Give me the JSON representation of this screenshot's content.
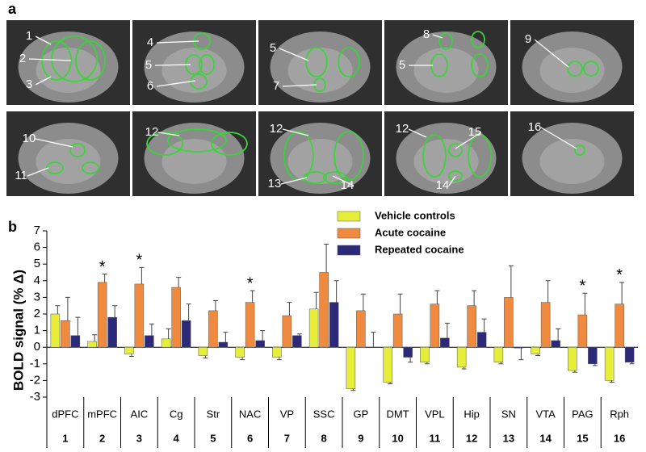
{
  "panel_labels": [
    "a",
    "b"
  ],
  "images": [
    {
      "labels": [
        "1",
        "2",
        "3"
      ]
    },
    {
      "labels": [
        "4",
        "5",
        "6"
      ]
    },
    {
      "labels": [
        "5",
        "7"
      ]
    },
    {
      "labels": [
        "8",
        "5"
      ]
    },
    {
      "labels": [
        "9"
      ]
    },
    {
      "labels": [
        "10",
        "11"
      ]
    },
    {
      "labels": [
        "12"
      ]
    },
    {
      "labels": [
        "12",
        "13",
        "14"
      ]
    },
    {
      "labels": [
        "12",
        "15",
        "14"
      ]
    },
    {
      "labels": [
        "16"
      ]
    }
  ],
  "chart_data": {
    "type": "bar",
    "y_label": "BOLD signal (% Δ)",
    "categories": [
      "dPFC",
      "mPFC",
      "AIC",
      "Cg",
      "Str",
      "NAC",
      "VP",
      "SSC",
      "GP",
      "DMT",
      "VPL",
      "Hip",
      "SN",
      "VTA",
      "PAG",
      "Rph"
    ],
    "category_numbers": [
      "1",
      "2",
      "3",
      "4",
      "5",
      "6",
      "7",
      "8",
      "9",
      "10",
      "11",
      "12",
      "13",
      "14",
      "15",
      "16"
    ],
    "series": [
      {
        "name": "Vehicle controls",
        "color": "#e6ee3a",
        "values": [
          2.0,
          0.35,
          -0.4,
          0.5,
          -0.5,
          -0.6,
          -0.6,
          2.3,
          -2.5,
          -2.1,
          -0.9,
          -1.2,
          -0.9,
          -0.4,
          -1.4,
          -2.0
        ],
        "errors": [
          0.5,
          0.4,
          0.15,
          0.6,
          0.15,
          0.15,
          0.15,
          1.0,
          0.1,
          0.1,
          0.1,
          0.1,
          0.1,
          0.1,
          0.1,
          0.1
        ]
      },
      {
        "name": "Acute cocaine",
        "color": "#ef8a3e",
        "values": [
          1.6,
          3.9,
          3.8,
          3.6,
          2.2,
          2.7,
          1.9,
          4.5,
          2.2,
          2.0,
          2.6,
          2.5,
          3.0,
          2.7,
          1.95,
          2.6
        ],
        "errors": [
          1.4,
          0.5,
          1.0,
          0.6,
          0.6,
          0.7,
          0.8,
          1.7,
          1.0,
          1.2,
          0.8,
          0.9,
          1.9,
          1.3,
          1.3,
          1.3
        ]
      },
      {
        "name": "Repeated cocaine",
        "color": "#2c2a78",
        "values": [
          0.7,
          1.8,
          0.7,
          1.6,
          0.3,
          0.4,
          0.7,
          2.7,
          0.0,
          -0.6,
          0.55,
          0.9,
          -0.05,
          0.4,
          -1.0,
          -0.9
        ],
        "errors": [
          1.1,
          0.7,
          0.7,
          1.0,
          0.6,
          0.6,
          0.1,
          1.3,
          0.9,
          0.3,
          0.9,
          0.8,
          0.7,
          0.7,
          0.1,
          0.1
        ]
      }
    ],
    "significant": [
      false,
      true,
      true,
      false,
      false,
      true,
      false,
      false,
      false,
      false,
      false,
      false,
      false,
      false,
      true,
      true
    ],
    "significance_marker": "*",
    "ylim": [
      -3,
      7
    ],
    "yticks": [
      -3,
      -2,
      -1,
      0,
      1,
      2,
      3,
      4,
      5,
      6,
      7
    ],
    "legend": "top"
  }
}
